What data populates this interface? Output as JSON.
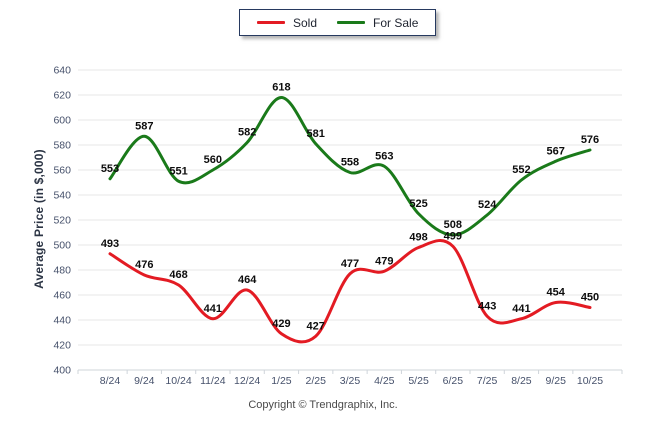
{
  "legend": {
    "items": [
      {
        "label": "Sold",
        "color": "#e31b23"
      },
      {
        "label": "For Sale",
        "color": "#1a7a1a"
      }
    ]
  },
  "y_axis": {
    "title": "Average Price (in $,000)",
    "ticks": [
      400,
      420,
      440,
      460,
      480,
      500,
      520,
      540,
      560,
      580,
      600,
      620,
      640
    ]
  },
  "footer": {
    "copyright": "Copyright © Trendgraphix, Inc."
  },
  "chart_data": {
    "type": "line",
    "categories": [
      "8/24",
      "9/24",
      "10/24",
      "11/24",
      "12/24",
      "1/25",
      "2/25",
      "3/25",
      "4/25",
      "5/25",
      "6/25",
      "7/25",
      "8/25",
      "9/25",
      "10/25"
    ],
    "series": [
      {
        "name": "Sold",
        "color": "#e31b23",
        "values": [
          493,
          476,
          468,
          441,
          464,
          429,
          427,
          477,
          479,
          498,
          499,
          443,
          441,
          454,
          450
        ]
      },
      {
        "name": "For Sale",
        "color": "#1a7a1a",
        "values": [
          553,
          587,
          551,
          560,
          582,
          618,
          581,
          558,
          563,
          525,
          508,
          524,
          552,
          567,
          576
        ]
      }
    ],
    "title": "",
    "xlabel": "",
    "ylabel": "Average Price (in $,000)",
    "ylim": [
      400,
      640
    ],
    "ytick_step": 20,
    "grid": "horizontal",
    "legend_position": "top-center",
    "point_labels": true,
    "colors": {
      "gridline": "#e7e7e7",
      "axis": "#cfd4da",
      "tick_text": "#46516b",
      "label_text": "#0d0d0d"
    }
  }
}
